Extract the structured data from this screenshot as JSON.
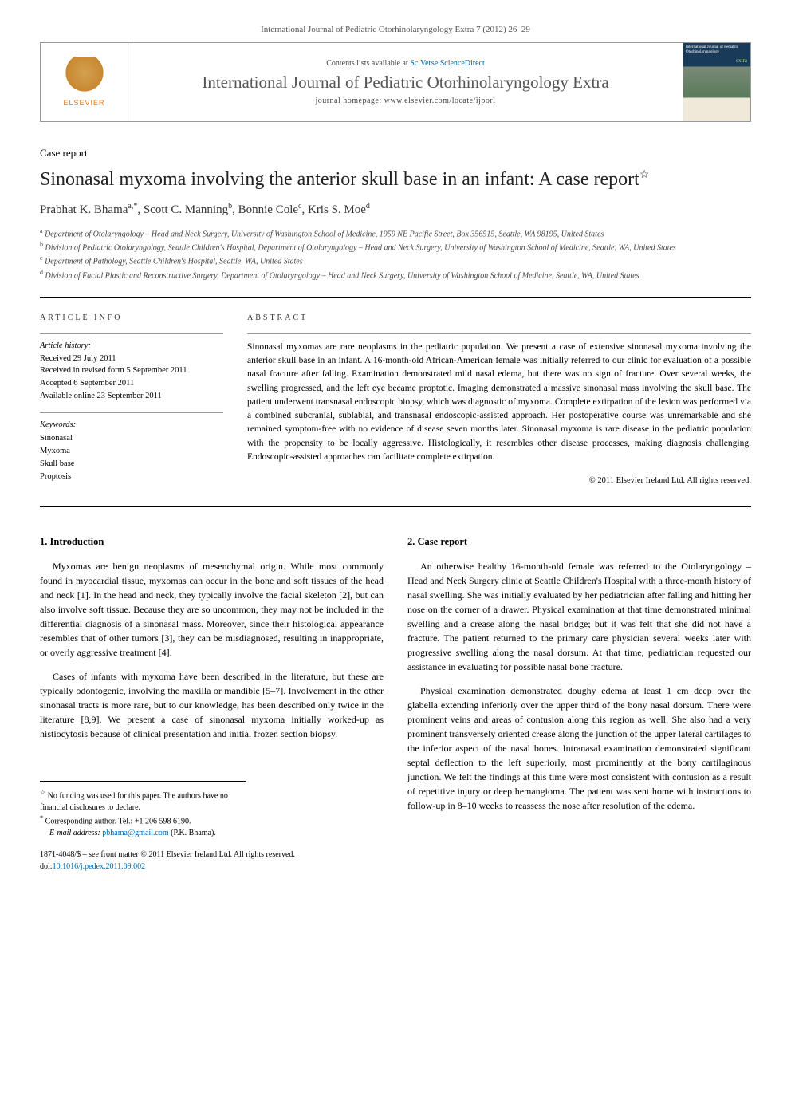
{
  "journal_ref": "International Journal of Pediatric Otorhinolaryngology Extra 7 (2012) 26–29",
  "banner": {
    "contents_prefix": "Contents lists available at ",
    "contents_link": "SciVerse ScienceDirect",
    "journal_title": "International Journal of Pediatric Otorhinolaryngology Extra",
    "homepage_prefix": "journal homepage: ",
    "homepage_url": "www.elsevier.com/locate/ijporl",
    "publisher": "ELSEVIER",
    "cover_title": "International Journal of Pediatric Otorhinolaryngology",
    "cover_extra": "extra"
  },
  "section_type": "Case report",
  "title": "Sinonasal myxoma involving the anterior skull base in an infant: A case report",
  "title_marker": "☆",
  "authors_html": "Prabhat K. Bhama",
  "authors": [
    {
      "name": "Prabhat K. Bhama",
      "sup": "a,*"
    },
    {
      "name": "Scott C. Manning",
      "sup": "b"
    },
    {
      "name": "Bonnie Cole",
      "sup": "c"
    },
    {
      "name": "Kris S. Moe",
      "sup": "d"
    }
  ],
  "affiliations": [
    {
      "sup": "a",
      "text": "Department of Otolaryngology – Head and Neck Surgery, University of Washington School of Medicine, 1959 NE Pacific Street, Box 356515, Seattle, WA 98195, United States"
    },
    {
      "sup": "b",
      "text": "Division of Pediatric Otolaryngology, Seattle Children's Hospital, Department of Otolaryngology – Head and Neck Surgery, University of Washington School of Medicine, Seattle, WA, United States"
    },
    {
      "sup": "c",
      "text": "Department of Pathology, Seattle Children's Hospital, Seattle, WA, United States"
    },
    {
      "sup": "d",
      "text": "Division of Facial Plastic and Reconstructive Surgery, Department of Otolaryngology – Head and Neck Surgery, University of Washington School of Medicine, Seattle, WA, United States"
    }
  ],
  "article_info": {
    "heading": "ARTICLE INFO",
    "history_label": "Article history:",
    "received": "Received 29 July 2011",
    "revised": "Received in revised form 5 September 2011",
    "accepted": "Accepted 6 September 2011",
    "online": "Available online 23 September 2011",
    "keywords_label": "Keywords:",
    "keywords": [
      "Sinonasal",
      "Myxoma",
      "Skull base",
      "Proptosis"
    ]
  },
  "abstract": {
    "heading": "ABSTRACT",
    "text": "Sinonasal myxomas are rare neoplasms in the pediatric population. We present a case of extensive sinonasal myxoma involving the anterior skull base in an infant. A 16-month-old African-American female was initially referred to our clinic for evaluation of a possible nasal fracture after falling. Examination demonstrated mild nasal edema, but there was no sign of fracture. Over several weeks, the swelling progressed, and the left eye became proptotic. Imaging demonstrated a massive sinonasal mass involving the skull base. The patient underwent transnasal endoscopic biopsy, which was diagnostic of myxoma. Complete extirpation of the lesion was performed via a combined subcranial, sublabial, and transnasal endoscopic-assisted approach. Her postoperative course was unremarkable and she remained symptom-free with no evidence of disease seven months later. Sinonasal myxoma is rare disease in the pediatric population with the propensity to be locally aggressive. Histologically, it resembles other disease processes, making diagnosis challenging. Endoscopic-assisted approaches can facilitate complete extirpation.",
    "copyright": "© 2011 Elsevier Ireland Ltd. All rights reserved."
  },
  "sections": {
    "intro_heading": "1. Introduction",
    "intro_p1": "Myxomas are benign neoplasms of mesenchymal origin. While most commonly found in myocardial tissue, myxomas can occur in the bone and soft tissues of the head and neck [1]. In the head and neck, they typically involve the facial skeleton [2], but can also involve soft tissue. Because they are so uncommon, they may not be included in the differential diagnosis of a sinonasal mass. Moreover, since their histological appearance resembles that of other tumors [3], they can be misdiagnosed, resulting in inappropriate, or overly aggressive treatment [4].",
    "intro_p2": "Cases of infants with myxoma have been described in the literature, but these are typically odontogenic, involving the maxilla or mandible [5–7]. Involvement in the other sinonasal tracts is more rare, but to our knowledge, has been described only twice in the literature [8,9]. We present a case of sinonasal myxoma initially worked-up as histiocytosis because of clinical presentation and initial frozen section biopsy.",
    "case_heading": "2. Case report",
    "case_p1": "An otherwise healthy 16-month-old female was referred to the Otolaryngology – Head and Neck Surgery clinic at Seattle Children's Hospital with a three-month history of nasal swelling. She was initially evaluated by her pediatrician after falling and hitting her nose on the corner of a drawer. Physical examination at that time demonstrated minimal swelling and a crease along the nasal bridge; but it was felt that she did not have a fracture. The patient returned to the primary care physician several weeks later with progressive swelling along the nasal dorsum. At that time, pediatrician requested our assistance in evaluating for possible nasal bone fracture.",
    "case_p2": "Physical examination demonstrated doughy edema at least 1 cm deep over the glabella extending inferiorly over the upper third of the bony nasal dorsum. There were prominent veins and areas of contusion along this region as well. She also had a very prominent transversely oriented crease along the junction of the upper lateral cartilages to the inferior aspect of the nasal bones. Intranasal examination demonstrated significant septal deflection to the left superiorly, most prominently at the bony cartilaginous junction. We felt the findings at this time were most consistent with contusion as a result of repetitive injury or deep hemangioma. The patient was sent home with instructions to follow-up in 8–10 weeks to reassess the nose after resolution of the edema."
  },
  "footnotes": {
    "funding": "No funding was used for this paper. The authors have no financial disclosures to declare.",
    "funding_marker": "☆",
    "corresponding": "Corresponding author. Tel.: +1 206 598 6190.",
    "corresponding_marker": "*",
    "email_label": "E-mail address:",
    "email": "pbhama@gmail.com",
    "email_suffix": "(P.K. Bhama)."
  },
  "front_matter": {
    "line1": "1871-4048/$ – see front matter © 2011 Elsevier Ireland Ltd. All rights reserved.",
    "doi_prefix": "doi:",
    "doi": "10.1016/j.pedex.2011.09.002"
  },
  "colors": {
    "link": "#0066aa",
    "text": "#000000",
    "heading_gray": "#555555",
    "elsevier_orange": "#e67817"
  }
}
